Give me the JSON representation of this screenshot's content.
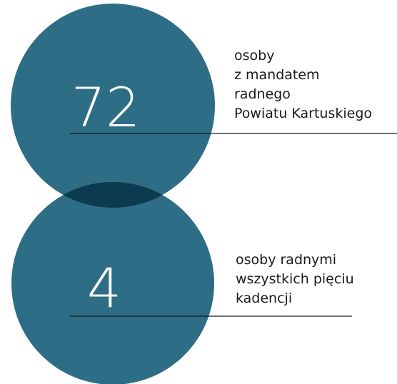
{
  "items": [
    {
      "number": "72",
      "lines": [
        "osoby",
        "z mandatem",
        "radnego",
        "Powiatu Kartuskiego"
      ]
    },
    {
      "number": "4",
      "lines": [
        "osoby radnymi",
        "wszystkich pięciu",
        "kadencji"
      ]
    }
  ]
}
